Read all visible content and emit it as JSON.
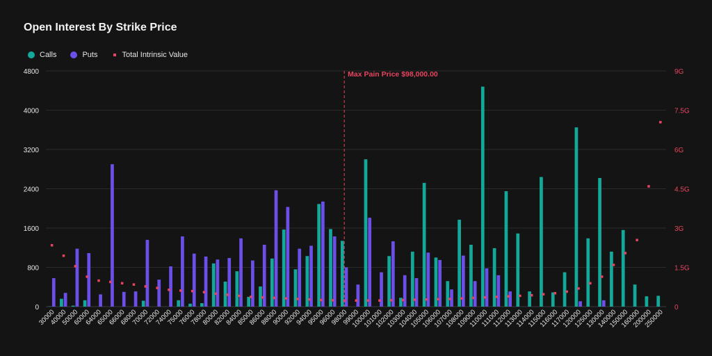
{
  "colors": {
    "calls": "#14a89a",
    "puts": "#6c4ee8",
    "intrinsic": "#e8445f",
    "maxpain": "#e8445f",
    "grid": "#2a2a2a",
    "text": "#e6e6e6"
  },
  "chart_data": {
    "type": "bar",
    "title": "Open Interest By Strike Price",
    "legend": [
      "Calls",
      "Puts",
      "Total Intrinsic Value"
    ],
    "y_left": {
      "ticks": [
        0,
        800,
        1600,
        2400,
        3200,
        4000,
        4800
      ],
      "ylim": [
        0,
        4800
      ]
    },
    "y_right": {
      "tick_values": [
        0,
        1.5,
        3,
        4.5,
        6,
        7.5,
        9
      ],
      "tick_labels": [
        "0",
        "1.5G",
        "3G",
        "4.5G",
        "6G",
        "7.5G",
        "9G"
      ],
      "ylim": [
        0,
        9
      ]
    },
    "annotation": {
      "label": "Max Pain Price $98,000.00",
      "category": "98000"
    },
    "categories": [
      "30000",
      "40000",
      "50000",
      "60000",
      "64000",
      "65000",
      "66000",
      "68000",
      "70000",
      "72000",
      "74000",
      "75000",
      "76000",
      "78000",
      "80000",
      "82000",
      "84000",
      "85000",
      "86000",
      "88000",
      "90000",
      "92000",
      "94000",
      "95000",
      "96000",
      "98000",
      "99000",
      "100000",
      "101000",
      "102000",
      "103000",
      "104000",
      "105000",
      "106000",
      "107000",
      "108000",
      "109000",
      "110000",
      "111000",
      "112000",
      "113000",
      "114000",
      "115000",
      "116000",
      "117000",
      "120000",
      "125000",
      "130000",
      "140000",
      "150000",
      "160000",
      "200000",
      "250000"
    ],
    "series": [
      {
        "name": "Calls",
        "values": [
          5,
          160,
          20,
          130,
          0,
          0,
          0,
          0,
          120,
          0,
          0,
          130,
          60,
          70,
          880,
          510,
          720,
          200,
          410,
          980,
          1570,
          760,
          1030,
          2090,
          1580,
          1340,
          0,
          3000,
          0,
          1030,
          180,
          1120,
          2520,
          1000,
          520,
          1770,
          1260,
          4480,
          1190,
          2350,
          1490,
          310,
          2640,
          290,
          700,
          3650,
          1390,
          2620,
          1120,
          1560,
          450,
          210,
          220
        ]
      },
      {
        "name": "Puts",
        "values": [
          580,
          280,
          1180,
          1090,
          250,
          2900,
          300,
          310,
          1360,
          550,
          820,
          1430,
          1080,
          1020,
          960,
          990,
          1390,
          940,
          1260,
          2370,
          2030,
          1180,
          1240,
          2140,
          1430,
          800,
          450,
          1810,
          700,
          1330,
          640,
          580,
          1100,
          950,
          350,
          1040,
          520,
          780,
          640,
          310,
          0,
          0,
          0,
          0,
          0,
          110,
          0,
          130,
          0,
          0,
          0,
          0,
          0
        ]
      },
      {
        "name": "Total Intrinsic Value",
        "values": [
          2.35,
          1.95,
          1.55,
          1.15,
          1.0,
          0.95,
          0.9,
          0.85,
          0.78,
          0.72,
          0.65,
          0.62,
          0.6,
          0.56,
          0.5,
          0.46,
          0.42,
          0.38,
          0.36,
          0.34,
          0.32,
          0.3,
          0.28,
          0.26,
          0.25,
          0.24,
          0.24,
          0.24,
          0.24,
          0.25,
          0.26,
          0.27,
          0.28,
          0.29,
          0.3,
          0.32,
          0.34,
          0.36,
          0.38,
          0.4,
          0.42,
          0.44,
          0.48,
          0.52,
          0.58,
          0.7,
          0.9,
          1.15,
          1.6,
          2.05,
          2.55,
          4.6,
          7.05
        ]
      }
    ]
  }
}
